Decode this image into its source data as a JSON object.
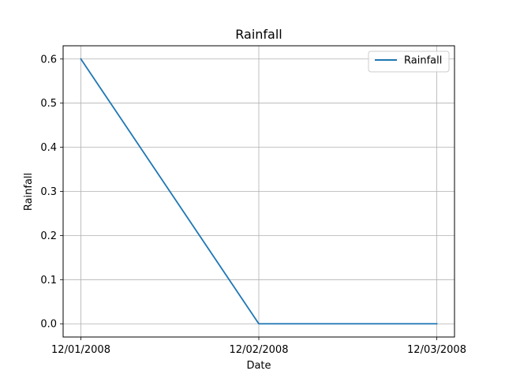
{
  "chart_data": {
    "type": "line",
    "title": "Rainfall",
    "xlabel": "Date",
    "ylabel": "Rainfall",
    "x": [
      "12/01/2008",
      "12/02/2008",
      "12/03/2008"
    ],
    "series": [
      {
        "name": "Rainfall",
        "values": [
          0.6,
          0.0,
          0.0
        ],
        "color": "#1f77b4"
      }
    ],
    "ylim": [
      -0.03,
      0.63
    ],
    "yticks": [
      "0.0",
      "0.1",
      "0.2",
      "0.3",
      "0.4",
      "0.5",
      "0.6"
    ],
    "ytick_values": [
      0.0,
      0.1,
      0.2,
      0.3,
      0.4,
      0.5,
      0.6
    ],
    "grid": true,
    "legend_position": "top-right"
  }
}
